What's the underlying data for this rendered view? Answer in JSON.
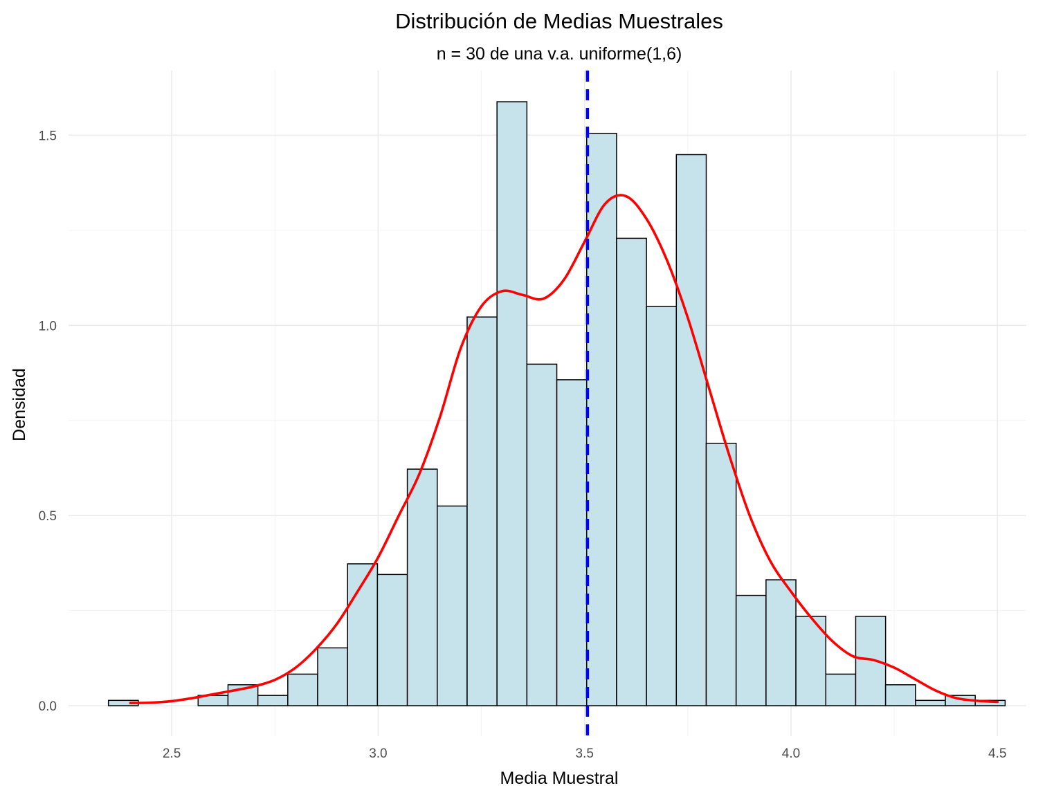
{
  "chart_data": {
    "type": "bar",
    "subtype": "histogram-with-density",
    "title": "Distribución de Medias Muestrales",
    "subtitle": "n = 30  de una v.a. uniforme(1,6)",
    "xlabel": "Media Muestral",
    "ylabel": "Densidad",
    "xlim": [
      2.25,
      4.57
    ],
    "ylim": [
      -0.08,
      1.67
    ],
    "x_ticks": [
      2.5,
      3.0,
      3.5,
      4.0,
      4.5
    ],
    "x_tick_labels": [
      "2.5",
      "3.0",
      "3.5",
      "4.0",
      "4.5"
    ],
    "y_ticks": [
      0.0,
      0.5,
      1.0,
      1.5
    ],
    "y_tick_labels": [
      "0.0",
      "0.5",
      "1.0",
      "1.5"
    ],
    "grid": true,
    "legend": "none",
    "bins": {
      "edges": [
        2.3467,
        2.4191,
        2.4915,
        2.5639,
        2.6363,
        2.7087,
        2.7811,
        2.8535,
        2.9259,
        2.9983,
        3.0707,
        3.1431,
        3.2155,
        3.2879,
        3.3603,
        3.4327,
        3.5051,
        3.5775,
        3.6499,
        3.7223,
        3.7947,
        3.8671,
        3.9395,
        4.0119,
        4.0843,
        4.1567,
        4.2291,
        4.3015,
        4.3739,
        4.4463,
        4.5187
      ],
      "density": [
        0.014,
        0.0,
        0.0,
        0.027,
        0.055,
        0.027,
        0.083,
        0.152,
        0.373,
        0.345,
        0.622,
        0.525,
        1.022,
        1.588,
        0.898,
        0.857,
        1.505,
        1.229,
        1.05,
        1.449,
        0.69,
        0.29,
        0.331,
        0.235,
        0.083,
        0.235,
        0.055,
        0.014,
        0.027,
        0.014
      ]
    },
    "density_curve": {
      "x": [
        2.4,
        2.45,
        2.5,
        2.55,
        2.6,
        2.65,
        2.7,
        2.75,
        2.8,
        2.85,
        2.9,
        2.95,
        3.0,
        3.05,
        3.1,
        3.15,
        3.2,
        3.25,
        3.3,
        3.35,
        3.4,
        3.45,
        3.5,
        3.55,
        3.6,
        3.65,
        3.7,
        3.75,
        3.8,
        3.85,
        3.9,
        3.95,
        4.0,
        4.05,
        4.1,
        4.15,
        4.2,
        4.25,
        4.3,
        4.35,
        4.4,
        4.45,
        4.5
      ],
      "y": [
        0.007,
        0.008,
        0.012,
        0.02,
        0.03,
        0.04,
        0.051,
        0.068,
        0.1,
        0.15,
        0.215,
        0.3,
        0.39,
        0.5,
        0.61,
        0.76,
        0.94,
        1.05,
        1.09,
        1.08,
        1.07,
        1.12,
        1.22,
        1.32,
        1.34,
        1.28,
        1.17,
        1.02,
        0.84,
        0.66,
        0.5,
        0.38,
        0.3,
        0.23,
        0.17,
        0.13,
        0.12,
        0.1,
        0.07,
        0.04,
        0.02,
        0.013,
        0.01
      ]
    },
    "mean_line": {
      "x": 3.507,
      "style": "dashed"
    },
    "colors": {
      "bar_fill": "#c6e3ec",
      "bar_stroke": "#000000",
      "density_line": "#ff0000",
      "mean_line": "#0000ff",
      "grid_major": "#ebebeb",
      "grid_minor": "#f3f3f3",
      "tick_text": "#4d4d4d"
    }
  }
}
